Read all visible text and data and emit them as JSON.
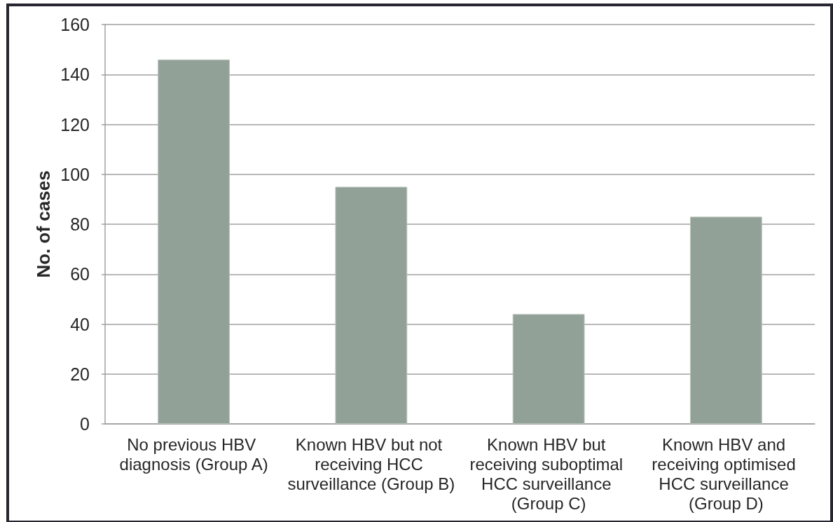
{
  "chart_data": {
    "type": "bar",
    "ylabel": "No. of cases",
    "categories": [
      "No previous HBV diagnosis (Group A)",
      "Known HBV but not receiving HCC surveillance (Group B)",
      "Known HBV but receiving suboptimal HCC surveillance (Group C)",
      "Known HBV and receiving optimised HCC surveillance (Group D)"
    ],
    "values": [
      146,
      95,
      44,
      83
    ],
    "color": "#92a197",
    "ylim": [
      0,
      160
    ],
    "yticks": [
      0,
      20,
      40,
      60,
      80,
      100,
      120,
      140,
      160
    ],
    "grid": "y"
  }
}
